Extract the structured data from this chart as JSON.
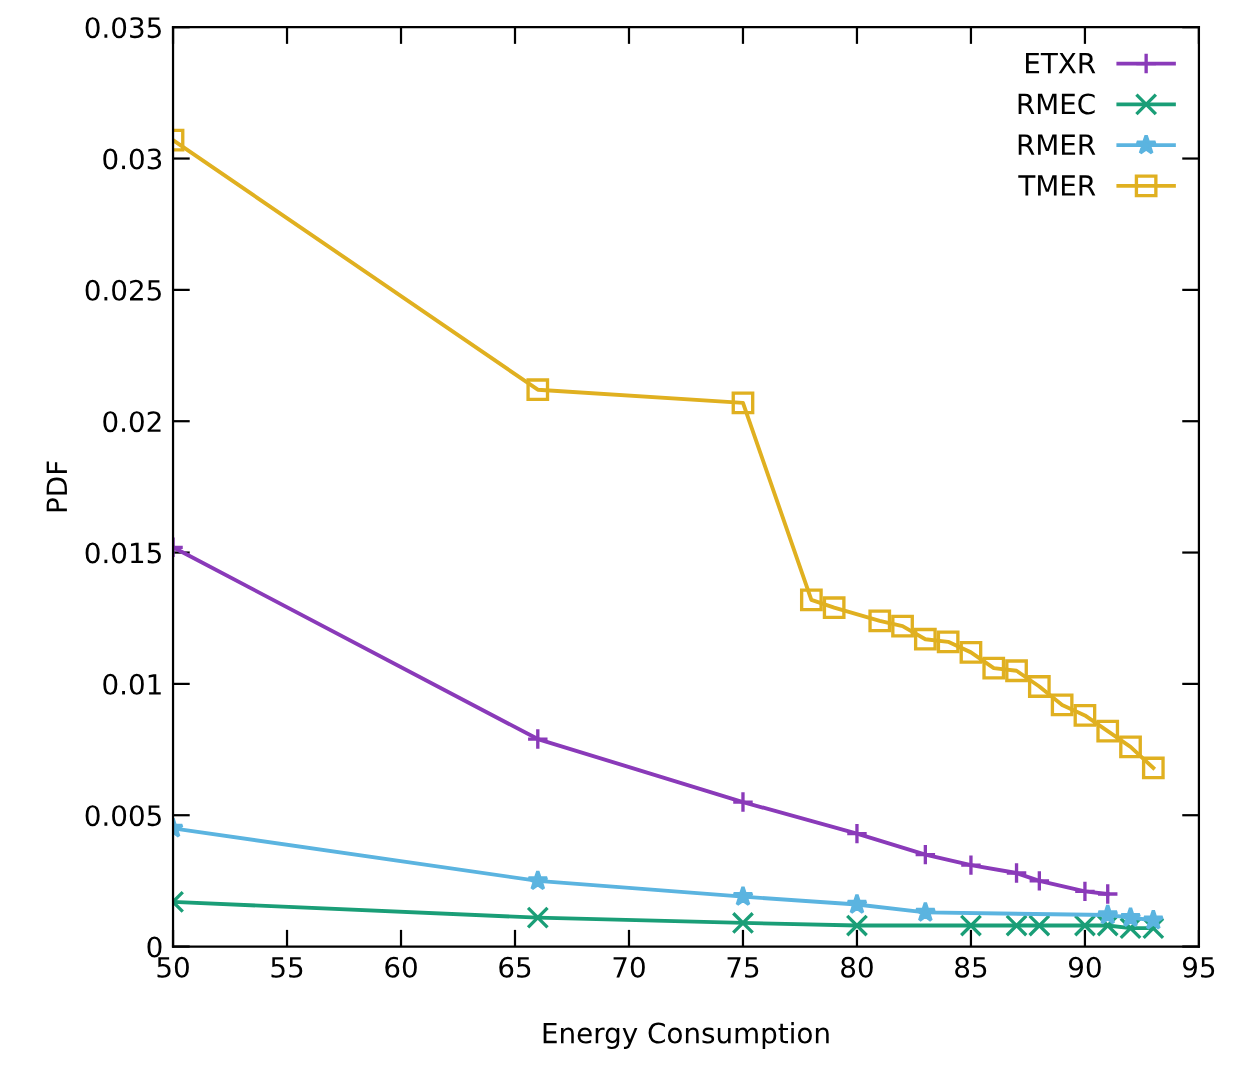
{
  "chart_data": {
    "type": "line",
    "xlabel": "Energy Consumption",
    "ylabel": "PDF",
    "xlim": [
      50,
      95
    ],
    "xticks": [
      50,
      55,
      60,
      65,
      70,
      75,
      80,
      85,
      90,
      95
    ],
    "ylim": [
      0,
      0.035
    ],
    "yticks": [
      0,
      0.005,
      0.01,
      0.015,
      0.02,
      0.025,
      0.03,
      0.035
    ],
    "grid": false,
    "legend": "top right",
    "line_style": "solid",
    "series": [
      {
        "name": "ETXR",
        "color": "#8a3ab9",
        "marker": "plus",
        "x": [
          50,
          66,
          75,
          80,
          83,
          85,
          87,
          88,
          90,
          91
        ],
        "values": [
          0.0152,
          0.0079,
          0.0055,
          0.0043,
          0.0035,
          0.0031,
          0.0028,
          0.0025,
          0.0021,
          0.002
        ]
      },
      {
        "name": "RMEC",
        "color": "#1a9e77",
        "marker": "cross",
        "x": [
          50,
          66,
          75,
          80,
          85,
          87,
          88,
          90,
          91,
          92,
          93
        ],
        "values": [
          0.0017,
          0.0011,
          0.0009,
          0.0008,
          0.0008,
          0.0008,
          0.0008,
          0.0008,
          0.0008,
          0.0007,
          0.0007
        ]
      },
      {
        "name": "RMER",
        "color": "#5bb4e0",
        "marker": "star",
        "x": [
          50,
          66,
          75,
          80,
          83,
          91,
          92,
          93
        ],
        "values": [
          0.0045,
          0.0025,
          0.0019,
          0.0016,
          0.0013,
          0.0012,
          0.0011,
          0.001
        ]
      },
      {
        "name": "TMER",
        "color": "#e0b020",
        "marker": "square",
        "x": [
          50,
          66,
          75,
          78,
          79,
          81,
          82,
          83,
          84,
          85,
          86,
          87,
          88,
          89,
          90,
          91,
          92,
          93
        ],
        "values": [
          0.0307,
          0.0212,
          0.0207,
          0.0132,
          0.0129,
          0.0124,
          0.0122,
          0.0117,
          0.0116,
          0.0112,
          0.0106,
          0.0105,
          0.0099,
          0.0092,
          0.0088,
          0.0082,
          0.0076,
          0.0068
        ]
      }
    ]
  }
}
